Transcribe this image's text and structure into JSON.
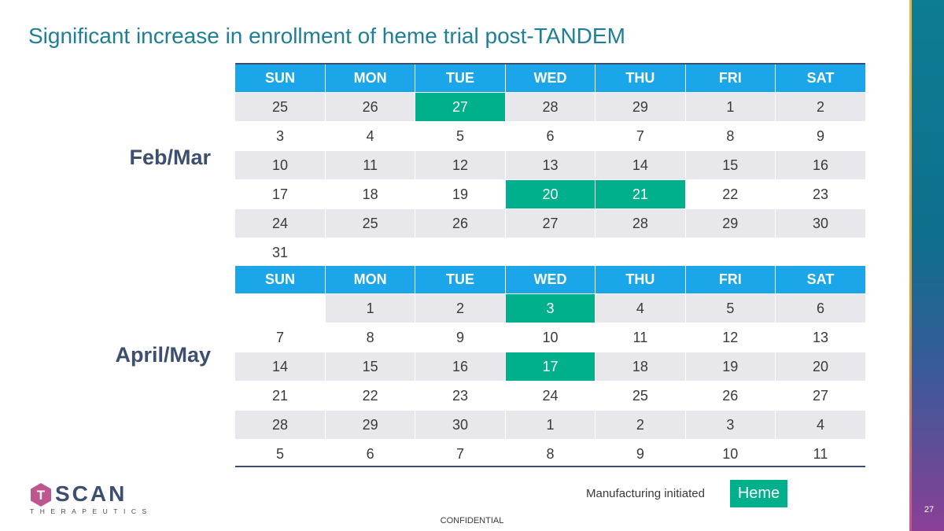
{
  "title": "Significant increase in enrollment of heme trial post-TANDEM",
  "days": [
    "SUN",
    "MON",
    "TUE",
    "WED",
    "THU",
    "FRI",
    "SAT"
  ],
  "calendars": [
    {
      "label": "Feb/Mar",
      "rows": [
        [
          {
            "v": "25"
          },
          {
            "v": "26"
          },
          {
            "v": "27",
            "h": true
          },
          {
            "v": "28"
          },
          {
            "v": "29"
          },
          {
            "v": "1"
          },
          {
            "v": "2"
          }
        ],
        [
          {
            "v": "3"
          },
          {
            "v": "4"
          },
          {
            "v": "5"
          },
          {
            "v": "6"
          },
          {
            "v": "7"
          },
          {
            "v": "8"
          },
          {
            "v": "9"
          }
        ],
        [
          {
            "v": "10"
          },
          {
            "v": "11"
          },
          {
            "v": "12"
          },
          {
            "v": "13"
          },
          {
            "v": "14"
          },
          {
            "v": "15"
          },
          {
            "v": "16"
          }
        ],
        [
          {
            "v": "17"
          },
          {
            "v": "18"
          },
          {
            "v": "19"
          },
          {
            "v": "20",
            "h": true
          },
          {
            "v": "21",
            "h": true
          },
          {
            "v": "22"
          },
          {
            "v": "23"
          }
        ],
        [
          {
            "v": "24"
          },
          {
            "v": "25"
          },
          {
            "v": "26"
          },
          {
            "v": "27"
          },
          {
            "v": "28"
          },
          {
            "v": "29"
          },
          {
            "v": "30"
          }
        ],
        [
          {
            "v": "31"
          },
          {
            "v": ""
          },
          {
            "v": ""
          },
          {
            "v": ""
          },
          {
            "v": ""
          },
          {
            "v": ""
          },
          {
            "v": ""
          }
        ]
      ]
    },
    {
      "label": "April/May",
      "rows": [
        [
          {
            "v": ""
          },
          {
            "v": "1"
          },
          {
            "v": "2"
          },
          {
            "v": "3",
            "h": true
          },
          {
            "v": "4"
          },
          {
            "v": "5"
          },
          {
            "v": "6"
          }
        ],
        [
          {
            "v": "7"
          },
          {
            "v": "8"
          },
          {
            "v": "9"
          },
          {
            "v": "10"
          },
          {
            "v": "11"
          },
          {
            "v": "12"
          },
          {
            "v": "13"
          }
        ],
        [
          {
            "v": "14"
          },
          {
            "v": "15"
          },
          {
            "v": "16"
          },
          {
            "v": "17",
            "h": true
          },
          {
            "v": "18"
          },
          {
            "v": "19"
          },
          {
            "v": "20"
          }
        ],
        [
          {
            "v": "21"
          },
          {
            "v": "22"
          },
          {
            "v": "23"
          },
          {
            "v": "24"
          },
          {
            "v": "25"
          },
          {
            "v": "26"
          },
          {
            "v": "27"
          }
        ],
        [
          {
            "v": "28"
          },
          {
            "v": "29"
          },
          {
            "v": "30"
          },
          {
            "v": "1"
          },
          {
            "v": "2"
          },
          {
            "v": "3"
          },
          {
            "v": "4"
          }
        ],
        [
          {
            "v": "5"
          },
          {
            "v": "6"
          },
          {
            "v": "7"
          },
          {
            "v": "8"
          },
          {
            "v": "9"
          },
          {
            "v": "10"
          },
          {
            "v": "11"
          }
        ]
      ]
    }
  ],
  "legend": {
    "manufacturing_label": "Manufacturing initiated",
    "heme_label": "Heme"
  },
  "footer": {
    "confidential": "CONFIDENTIAL",
    "page_number": "27"
  },
  "logo": {
    "wordmark": "TSCAN",
    "subtitle": "THERAPEUTICS"
  },
  "colors": {
    "highlight": "#00b08c",
    "header": "#1aa6e8",
    "title": "#1f7f95"
  }
}
